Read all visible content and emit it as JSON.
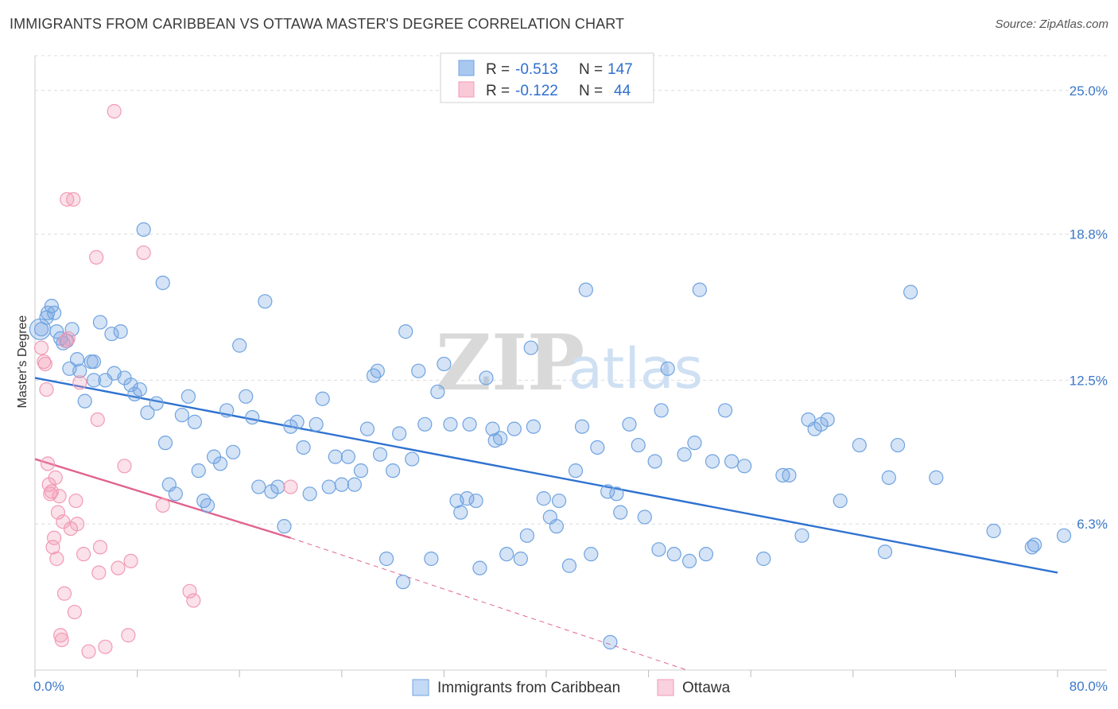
{
  "title": "IMMIGRANTS FROM CARIBBEAN VS OTTAWA MASTER'S DEGREE CORRELATION CHART",
  "source": "Source: ZipAtlas.com",
  "watermark": {
    "zip": "ZIP",
    "atlas": "atlas"
  },
  "legend": {
    "r_label": "R =",
    "n_label": "N =",
    "entries": [
      {
        "r": "-0.513",
        "n": "147",
        "color": "#a9c8f0"
      },
      {
        "r": "-0.122",
        "n": "44",
        "color": "#f7b8cc"
      }
    ]
  },
  "chart_data": {
    "type": "scatter",
    "xlabel": "",
    "ylabel": "Master's Degree",
    "xlim": [
      0,
      80
    ],
    "ylim": [
      0,
      26.5
    ],
    "x_tick_labels": [
      "0.0%",
      "80.0%"
    ],
    "y_ticks": [
      6.3,
      12.5,
      18.8,
      25.0
    ],
    "y_tick_labels": [
      "6.3%",
      "12.5%",
      "18.8%",
      "25.0%"
    ],
    "colors": {
      "caribbean": "#6fa3e0",
      "ottawa": "#f29ab5",
      "caribbean_line": "#2f72d0",
      "ottawa_line": "#e0648f"
    },
    "series": [
      {
        "name": "Immigrants from Caribbean",
        "trend": {
          "x0": 0,
          "y0": 12.6,
          "x1": 80,
          "y1": 4.2
        },
        "points": [
          [
            0.5,
            14.7
          ],
          [
            0.9,
            15.2
          ],
          [
            1.0,
            15.4
          ],
          [
            1.3,
            15.7
          ],
          [
            1.5,
            15.4
          ],
          [
            1.7,
            14.6
          ],
          [
            2.0,
            14.3
          ],
          [
            2.2,
            14.1
          ],
          [
            2.5,
            14.2
          ],
          [
            2.7,
            13.0
          ],
          [
            2.9,
            14.7
          ],
          [
            3.3,
            13.4
          ],
          [
            3.5,
            12.9
          ],
          [
            3.9,
            11.6
          ],
          [
            4.4,
            13.3
          ],
          [
            4.6,
            13.3
          ],
          [
            4.6,
            12.5
          ],
          [
            5.1,
            15.0
          ],
          [
            5.5,
            12.5
          ],
          [
            6.0,
            14.5
          ],
          [
            6.2,
            12.8
          ],
          [
            6.7,
            14.6
          ],
          [
            7.0,
            12.6
          ],
          [
            7.5,
            12.3
          ],
          [
            7.8,
            11.9
          ],
          [
            8.2,
            12.1
          ],
          [
            8.5,
            19.0
          ],
          [
            8.8,
            11.1
          ],
          [
            9.5,
            11.5
          ],
          [
            10.0,
            16.7
          ],
          [
            10.2,
            9.8
          ],
          [
            10.5,
            8.0
          ],
          [
            11.0,
            7.6
          ],
          [
            11.5,
            11.0
          ],
          [
            12.0,
            11.8
          ],
          [
            12.5,
            10.7
          ],
          [
            12.8,
            8.6
          ],
          [
            13.2,
            7.3
          ],
          [
            13.5,
            7.1
          ],
          [
            14.0,
            9.2
          ],
          [
            14.5,
            8.9
          ],
          [
            15.0,
            11.2
          ],
          [
            15.5,
            9.4
          ],
          [
            16.0,
            14.0
          ],
          [
            16.5,
            11.8
          ],
          [
            17.0,
            10.9
          ],
          [
            17.5,
            7.9
          ],
          [
            18.0,
            15.9
          ],
          [
            18.5,
            7.7
          ],
          [
            19.0,
            7.9
          ],
          [
            19.5,
            6.2
          ],
          [
            20.0,
            10.5
          ],
          [
            20.5,
            10.7
          ],
          [
            21.0,
            9.6
          ],
          [
            21.5,
            7.6
          ],
          [
            22.0,
            10.6
          ],
          [
            22.5,
            11.7
          ],
          [
            23.0,
            7.9
          ],
          [
            23.5,
            9.2
          ],
          [
            24.0,
            8.0
          ],
          [
            24.5,
            9.2
          ],
          [
            25.0,
            8.0
          ],
          [
            25.5,
            8.6
          ],
          [
            26.0,
            10.4
          ],
          [
            26.5,
            12.7
          ],
          [
            26.8,
            12.9
          ],
          [
            27.0,
            9.3
          ],
          [
            27.5,
            4.8
          ],
          [
            28.0,
            8.6
          ],
          [
            28.5,
            10.2
          ],
          [
            28.8,
            3.8
          ],
          [
            29.0,
            14.6
          ],
          [
            29.5,
            9.1
          ],
          [
            30.0,
            12.9
          ],
          [
            30.5,
            10.6
          ],
          [
            31.0,
            4.8
          ],
          [
            31.5,
            12.0
          ],
          [
            32.0,
            13.2
          ],
          [
            32.5,
            10.6
          ],
          [
            33.0,
            7.3
          ],
          [
            33.3,
            6.8
          ],
          [
            33.8,
            7.4
          ],
          [
            34.0,
            10.6
          ],
          [
            34.5,
            7.3
          ],
          [
            34.8,
            4.4
          ],
          [
            35.3,
            12.6
          ],
          [
            35.8,
            10.4
          ],
          [
            36.0,
            9.9
          ],
          [
            36.4,
            10.0
          ],
          [
            36.9,
            5.0
          ],
          [
            37.5,
            10.4
          ],
          [
            38.0,
            4.8
          ],
          [
            38.5,
            5.8
          ],
          [
            38.8,
            13.9
          ],
          [
            39.0,
            10.5
          ],
          [
            39.8,
            7.4
          ],
          [
            40.3,
            6.6
          ],
          [
            40.8,
            6.2
          ],
          [
            41.0,
            7.3
          ],
          [
            41.8,
            4.5
          ],
          [
            42.3,
            8.6
          ],
          [
            42.8,
            10.5
          ],
          [
            43.1,
            16.4
          ],
          [
            43.5,
            5.0
          ],
          [
            44.0,
            9.6
          ],
          [
            44.8,
            7.7
          ],
          [
            45.5,
            7.6
          ],
          [
            45.8,
            6.8
          ],
          [
            46.5,
            10.6
          ],
          [
            47.2,
            9.7
          ],
          [
            47.7,
            6.6
          ],
          [
            48.5,
            9.0
          ],
          [
            48.8,
            5.2
          ],
          [
            49.0,
            11.2
          ],
          [
            49.5,
            13.0
          ],
          [
            50.0,
            5.0
          ],
          [
            50.8,
            9.3
          ],
          [
            51.2,
            4.7
          ],
          [
            51.6,
            9.8
          ],
          [
            52.0,
            16.4
          ],
          [
            52.5,
            5.0
          ],
          [
            53.0,
            9.0
          ],
          [
            54.0,
            11.2
          ],
          [
            54.5,
            9.0
          ],
          [
            55.5,
            8.8
          ],
          [
            57.0,
            4.8
          ],
          [
            58.5,
            8.4
          ],
          [
            59.0,
            8.4
          ],
          [
            60.0,
            5.8
          ],
          [
            60.5,
            10.8
          ],
          [
            61.0,
            10.4
          ],
          [
            61.5,
            10.6
          ],
          [
            62.0,
            10.8
          ],
          [
            63.0,
            7.3
          ],
          [
            64.5,
            9.7
          ],
          [
            66.5,
            5.1
          ],
          [
            66.8,
            8.3
          ],
          [
            67.5,
            9.7
          ],
          [
            68.5,
            16.3
          ],
          [
            70.5,
            8.3
          ],
          [
            75.0,
            6.0
          ],
          [
            78.0,
            5.3
          ],
          [
            78.2,
            5.4
          ],
          [
            80.5,
            5.8
          ],
          [
            45.0,
            1.2
          ]
        ]
      },
      {
        "name": "Ottawa",
        "trend": {
          "x0": 0,
          "y0": 9.1,
          "x1": 20,
          "y1": 5.7,
          "dash_to": {
            "x": 51,
            "y": 0
          }
        },
        "points": [
          [
            0.5,
            13.9
          ],
          [
            0.7,
            13.3
          ],
          [
            0.8,
            13.2
          ],
          [
            0.9,
            12.1
          ],
          [
            1.0,
            8.9
          ],
          [
            1.1,
            8.0
          ],
          [
            1.2,
            7.6
          ],
          [
            1.3,
            7.7
          ],
          [
            1.4,
            5.3
          ],
          [
            1.5,
            5.7
          ],
          [
            1.6,
            8.3
          ],
          [
            1.7,
            4.8
          ],
          [
            1.8,
            6.8
          ],
          [
            1.9,
            7.5
          ],
          [
            2.0,
            1.5
          ],
          [
            2.1,
            1.3
          ],
          [
            2.2,
            6.4
          ],
          [
            2.3,
            3.3
          ],
          [
            2.4,
            14.2
          ],
          [
            2.5,
            20.3
          ],
          [
            2.6,
            14.3
          ],
          [
            2.8,
            6.1
          ],
          [
            3.0,
            20.3
          ],
          [
            3.1,
            2.5
          ],
          [
            3.2,
            7.3
          ],
          [
            3.3,
            6.3
          ],
          [
            3.5,
            12.4
          ],
          [
            3.8,
            5.0
          ],
          [
            4.2,
            0.8
          ],
          [
            4.8,
            17.8
          ],
          [
            4.9,
            10.8
          ],
          [
            5.0,
            4.2
          ],
          [
            5.1,
            5.3
          ],
          [
            5.5,
            1.0
          ],
          [
            6.2,
            24.1
          ],
          [
            6.5,
            4.4
          ],
          [
            7.0,
            8.8
          ],
          [
            7.3,
            1.5
          ],
          [
            7.5,
            4.7
          ],
          [
            8.5,
            18.0
          ],
          [
            10.0,
            7.1
          ],
          [
            12.1,
            3.4
          ],
          [
            12.4,
            3.0
          ],
          [
            20.0,
            7.9
          ]
        ]
      }
    ]
  },
  "bottom_legend": [
    "Immigrants from Caribbean",
    "Ottawa"
  ]
}
